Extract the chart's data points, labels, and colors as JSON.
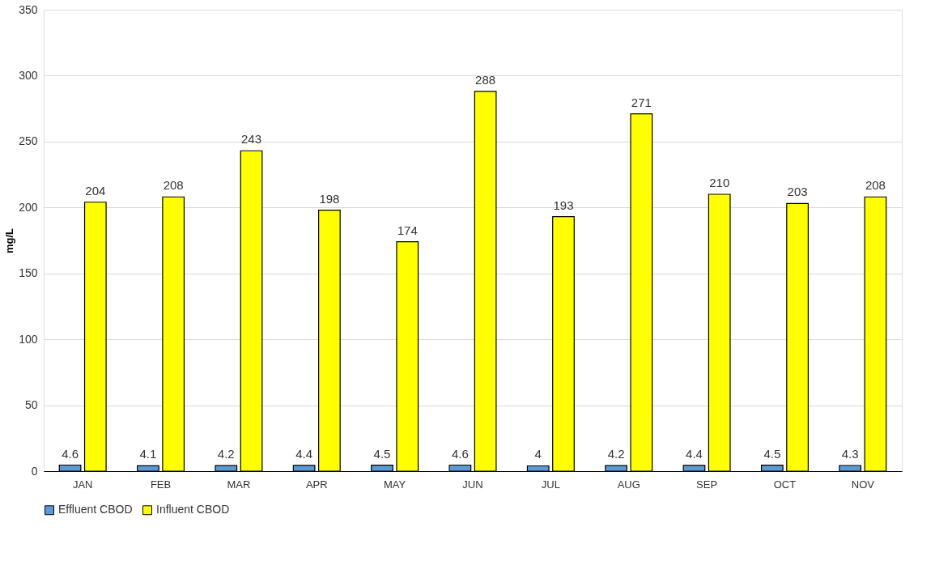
{
  "chart_data": {
    "type": "bar",
    "ylabel": "mg/L",
    "categories": [
      "JAN",
      "FEB",
      "MAR",
      "APR",
      "MAY",
      "JUN",
      "JUL",
      "AUG",
      "SEP",
      "OCT",
      "NOV"
    ],
    "series": [
      {
        "name": "Effluent CBOD",
        "color": "#5b9bd5",
        "values": [
          4.6,
          4.1,
          4.2,
          4.4,
          4.5,
          4.6,
          4,
          4.2,
          4.4,
          4.5,
          4.3
        ]
      },
      {
        "name": "Influent CBOD",
        "color": "#ffff00",
        "values": [
          204,
          208,
          243,
          198,
          174,
          288,
          193,
          271,
          210,
          203,
          208
        ]
      }
    ],
    "ylim": [
      0,
      350
    ],
    "yticks": [
      0,
      50,
      100,
      150,
      200,
      250,
      300,
      350
    ],
    "grid": "y",
    "legend": "bottom",
    "data_labels": true
  }
}
